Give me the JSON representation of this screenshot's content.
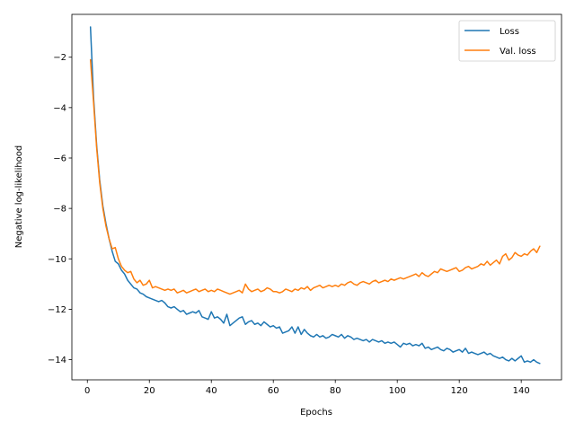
{
  "chart_data": {
    "type": "line",
    "title": "",
    "xlabel": "Epochs",
    "ylabel": "Negative log-likelihood",
    "xlim": [
      -5,
      153
    ],
    "ylim": [
      -14.8,
      -0.3
    ],
    "xticks": [
      0,
      20,
      40,
      60,
      80,
      100,
      120,
      140
    ],
    "yticks": [
      -14,
      -12,
      -10,
      -8,
      -6,
      -4,
      -2
    ],
    "grid": false,
    "legend_position": "top-right",
    "x": [
      1,
      2,
      3,
      4,
      5,
      6,
      7,
      8,
      9,
      10,
      11,
      12,
      13,
      14,
      15,
      16,
      17,
      18,
      19,
      20,
      21,
      22,
      23,
      24,
      25,
      26,
      27,
      28,
      29,
      30,
      31,
      32,
      33,
      34,
      35,
      36,
      37,
      38,
      39,
      40,
      41,
      42,
      43,
      44,
      45,
      46,
      47,
      48,
      49,
      50,
      51,
      52,
      53,
      54,
      55,
      56,
      57,
      58,
      59,
      60,
      61,
      62,
      63,
      64,
      65,
      66,
      67,
      68,
      69,
      70,
      71,
      72,
      73,
      74,
      75,
      76,
      77,
      78,
      79,
      80,
      81,
      82,
      83,
      84,
      85,
      86,
      87,
      88,
      89,
      90,
      91,
      92,
      93,
      94,
      95,
      96,
      97,
      98,
      99,
      100,
      101,
      102,
      103,
      104,
      105,
      106,
      107,
      108,
      109,
      110,
      111,
      112,
      113,
      114,
      115,
      116,
      117,
      118,
      119,
      120,
      121,
      122,
      123,
      124,
      125,
      126,
      127,
      128,
      129,
      130,
      131,
      132,
      133,
      134,
      135,
      136,
      137,
      138,
      139,
      140,
      141,
      142,
      143,
      144,
      145,
      146
    ],
    "series": [
      {
        "name": "Loss",
        "color": "#1f77b4",
        "values": [
          -0.8,
          -3.6,
          -5.5,
          -6.9,
          -7.9,
          -8.6,
          -9.2,
          -9.7,
          -10.1,
          -10.2,
          -10.45,
          -10.6,
          -10.85,
          -11.0,
          -11.15,
          -11.2,
          -11.35,
          -11.4,
          -11.5,
          -11.55,
          -11.6,
          -11.65,
          -11.7,
          -11.65,
          -11.75,
          -11.9,
          -11.95,
          -11.9,
          -12.0,
          -12.1,
          -12.05,
          -12.2,
          -12.15,
          -12.1,
          -12.15,
          -12.05,
          -12.3,
          -12.35,
          -12.4,
          -12.1,
          -12.35,
          -12.3,
          -12.4,
          -12.55,
          -12.2,
          -12.65,
          -12.55,
          -12.45,
          -12.35,
          -12.3,
          -12.6,
          -12.5,
          -12.45,
          -12.6,
          -12.55,
          -12.65,
          -12.5,
          -12.6,
          -12.7,
          -12.65,
          -12.75,
          -12.7,
          -12.95,
          -12.9,
          -12.85,
          -12.7,
          -12.95,
          -12.7,
          -13.0,
          -12.8,
          -12.95,
          -13.05,
          -13.1,
          -13.0,
          -13.1,
          -13.05,
          -13.15,
          -13.1,
          -13.0,
          -13.05,
          -13.1,
          -13.0,
          -13.15,
          -13.05,
          -13.1,
          -13.2,
          -13.15,
          -13.2,
          -13.25,
          -13.2,
          -13.3,
          -13.2,
          -13.25,
          -13.3,
          -13.25,
          -13.35,
          -13.3,
          -13.35,
          -13.3,
          -13.4,
          -13.5,
          -13.35,
          -13.4,
          -13.35,
          -13.45,
          -13.4,
          -13.45,
          -13.35,
          -13.55,
          -13.5,
          -13.6,
          -13.55,
          -13.5,
          -13.6,
          -13.65,
          -13.55,
          -13.6,
          -13.7,
          -13.65,
          -13.6,
          -13.7,
          -13.55,
          -13.75,
          -13.7,
          -13.75,
          -13.8,
          -13.75,
          -13.7,
          -13.8,
          -13.75,
          -13.85,
          -13.9,
          -13.95,
          -13.9,
          -14.0,
          -14.05,
          -13.95,
          -14.05,
          -13.95,
          -13.85,
          -14.1,
          -14.05,
          -14.1,
          -14.0,
          -14.1,
          -14.15
        ]
      },
      {
        "name": "Val. loss",
        "color": "#ff7f0e",
        "values": [
          -2.1,
          -3.8,
          -5.6,
          -7.0,
          -8.0,
          -8.7,
          -9.2,
          -9.6,
          -9.55,
          -10.0,
          -10.3,
          -10.45,
          -10.55,
          -10.5,
          -10.8,
          -10.95,
          -10.85,
          -11.05,
          -11.0,
          -10.85,
          -11.15,
          -11.1,
          -11.15,
          -11.2,
          -11.25,
          -11.2,
          -11.25,
          -11.2,
          -11.35,
          -11.3,
          -11.25,
          -11.35,
          -11.3,
          -11.25,
          -11.2,
          -11.3,
          -11.25,
          -11.2,
          -11.3,
          -11.25,
          -11.3,
          -11.2,
          -11.25,
          -11.3,
          -11.35,
          -11.4,
          -11.35,
          -11.3,
          -11.25,
          -11.35,
          -11.0,
          -11.2,
          -11.3,
          -11.25,
          -11.2,
          -11.3,
          -11.25,
          -11.15,
          -11.2,
          -11.3,
          -11.3,
          -11.35,
          -11.3,
          -11.2,
          -11.25,
          -11.3,
          -11.2,
          -11.25,
          -11.15,
          -11.2,
          -11.1,
          -11.25,
          -11.15,
          -11.1,
          -11.05,
          -11.15,
          -11.1,
          -11.05,
          -11.1,
          -11.05,
          -11.1,
          -11.0,
          -11.05,
          -10.95,
          -10.9,
          -11.0,
          -11.05,
          -10.95,
          -10.9,
          -10.95,
          -11.0,
          -10.9,
          -10.85,
          -10.95,
          -10.9,
          -10.85,
          -10.9,
          -10.8,
          -10.85,
          -10.8,
          -10.75,
          -10.8,
          -10.75,
          -10.7,
          -10.65,
          -10.6,
          -10.7,
          -10.55,
          -10.65,
          -10.7,
          -10.6,
          -10.5,
          -10.55,
          -10.4,
          -10.45,
          -10.5,
          -10.45,
          -10.4,
          -10.35,
          -10.5,
          -10.45,
          -10.35,
          -10.3,
          -10.4,
          -10.35,
          -10.3,
          -10.2,
          -10.25,
          -10.1,
          -10.25,
          -10.15,
          -10.05,
          -10.2,
          -9.9,
          -9.8,
          -10.05,
          -9.95,
          -9.75,
          -9.85,
          -9.9,
          -9.8,
          -9.85,
          -9.7,
          -9.6,
          -9.75,
          -9.5
        ]
      }
    ]
  }
}
